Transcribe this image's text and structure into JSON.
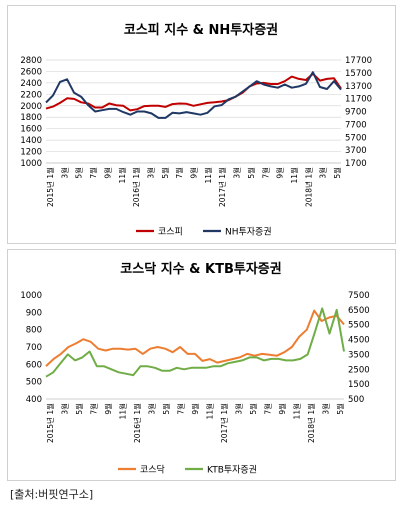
{
  "source": "[출처:버핏연구소]",
  "chart_data": [
    {
      "type": "line",
      "title": "코스피 지수 & NH투자증권",
      "x_tick_labels": [
        "2015년 1월",
        "3월",
        "5월",
        "7월",
        "9월",
        "11월",
        "2016년 1월",
        "3월",
        "5월",
        "7월",
        "9월",
        "11월",
        "2017년 1월",
        "3월",
        "5월",
        "7월",
        "9월",
        "11월",
        "2018년 1월",
        "3월",
        "5월"
      ],
      "y_left": {
        "ticks": [
          1000,
          1200,
          1400,
          1600,
          1800,
          2000,
          2200,
          2400,
          2600,
          2800
        ],
        "ylim": [
          1000,
          2800
        ]
      },
      "y_right": {
        "ticks": [
          1700,
          3700,
          5700,
          7700,
          9700,
          11700,
          13700,
          15700,
          17700
        ],
        "ylim": [
          1700,
          17700
        ]
      },
      "grid": true,
      "legend_position": "bottom",
      "series": [
        {
          "name": "코스피",
          "axis": "left",
          "color": "#c00000",
          "values": [
            1950,
            1985,
            2050,
            2130,
            2120,
            2060,
            2040,
            1970,
            1970,
            2040,
            2010,
            2000,
            1920,
            1940,
            1995,
            2000,
            2000,
            1980,
            2030,
            2040,
            2035,
            2000,
            2025,
            2050,
            2060,
            2075,
            2100,
            2160,
            2230,
            2340,
            2390,
            2400,
            2380,
            2380,
            2430,
            2510,
            2470,
            2450,
            2560,
            2440,
            2470,
            2480,
            2300
          ]
        },
        {
          "name": "NH투자증권",
          "axis": "right",
          "color": "#1f3864",
          "values": [
            11100,
            12200,
            14300,
            14700,
            12600,
            12000,
            10700,
            9700,
            9900,
            10100,
            10100,
            9600,
            9200,
            9700,
            9700,
            9400,
            8700,
            8700,
            9500,
            9400,
            9600,
            9400,
            9200,
            9500,
            10500,
            10700,
            11600,
            12000,
            12800,
            13600,
            14400,
            13900,
            13600,
            13400,
            13900,
            13400,
            13600,
            14000,
            15800,
            13500,
            13200,
            14400,
            13100
          ]
        }
      ]
    },
    {
      "type": "line",
      "title": "코스닥 지수 & KTB투자증권",
      "x_tick_labels": [
        "2015년 1월",
        "3월",
        "5월",
        "7월",
        "9월",
        "11월",
        "2016년 1월",
        "3월",
        "5월",
        "7월",
        "9월",
        "11월",
        "2017년 1월",
        "3월",
        "5월",
        "7월",
        "9월",
        "11월",
        "2018년 1월",
        "3월",
        "5월"
      ],
      "y_left": {
        "ticks": [
          400,
          500,
          600,
          700,
          800,
          900,
          1000
        ],
        "ylim": [
          400,
          1000
        ]
      },
      "y_right": {
        "ticks": [
          500,
          1500,
          2500,
          3500,
          4500,
          5500,
          6500,
          7500
        ],
        "ylim": [
          500,
          7500
        ]
      },
      "grid": false,
      "legend_position": "bottom",
      "series": [
        {
          "name": "코스닥",
          "axis": "left",
          "color": "#ed7d31",
          "values": [
            590,
            630,
            660,
            700,
            720,
            745,
            730,
            690,
            680,
            690,
            690,
            685,
            690,
            660,
            690,
            700,
            690,
            670,
            700,
            660,
            660,
            620,
            630,
            610,
            620,
            630,
            640,
            660,
            650,
            660,
            655,
            650,
            670,
            700,
            760,
            800,
            910,
            850,
            870,
            880,
            830
          ]
        },
        {
          "name": "KTB투자증권",
          "axis": "right",
          "color": "#70ad47",
          "values": [
            2000,
            2300,
            2900,
            3500,
            3100,
            3300,
            3700,
            2700,
            2700,
            2500,
            2300,
            2200,
            2100,
            2700,
            2700,
            2600,
            2400,
            2400,
            2600,
            2500,
            2600,
            2600,
            2600,
            2700,
            2700,
            2900,
            3000,
            3100,
            3300,
            3300,
            3100,
            3200,
            3200,
            3100,
            3100,
            3200,
            3500,
            5000,
            6600,
            4900,
            6500,
            3700
          ]
        }
      ]
    }
  ]
}
